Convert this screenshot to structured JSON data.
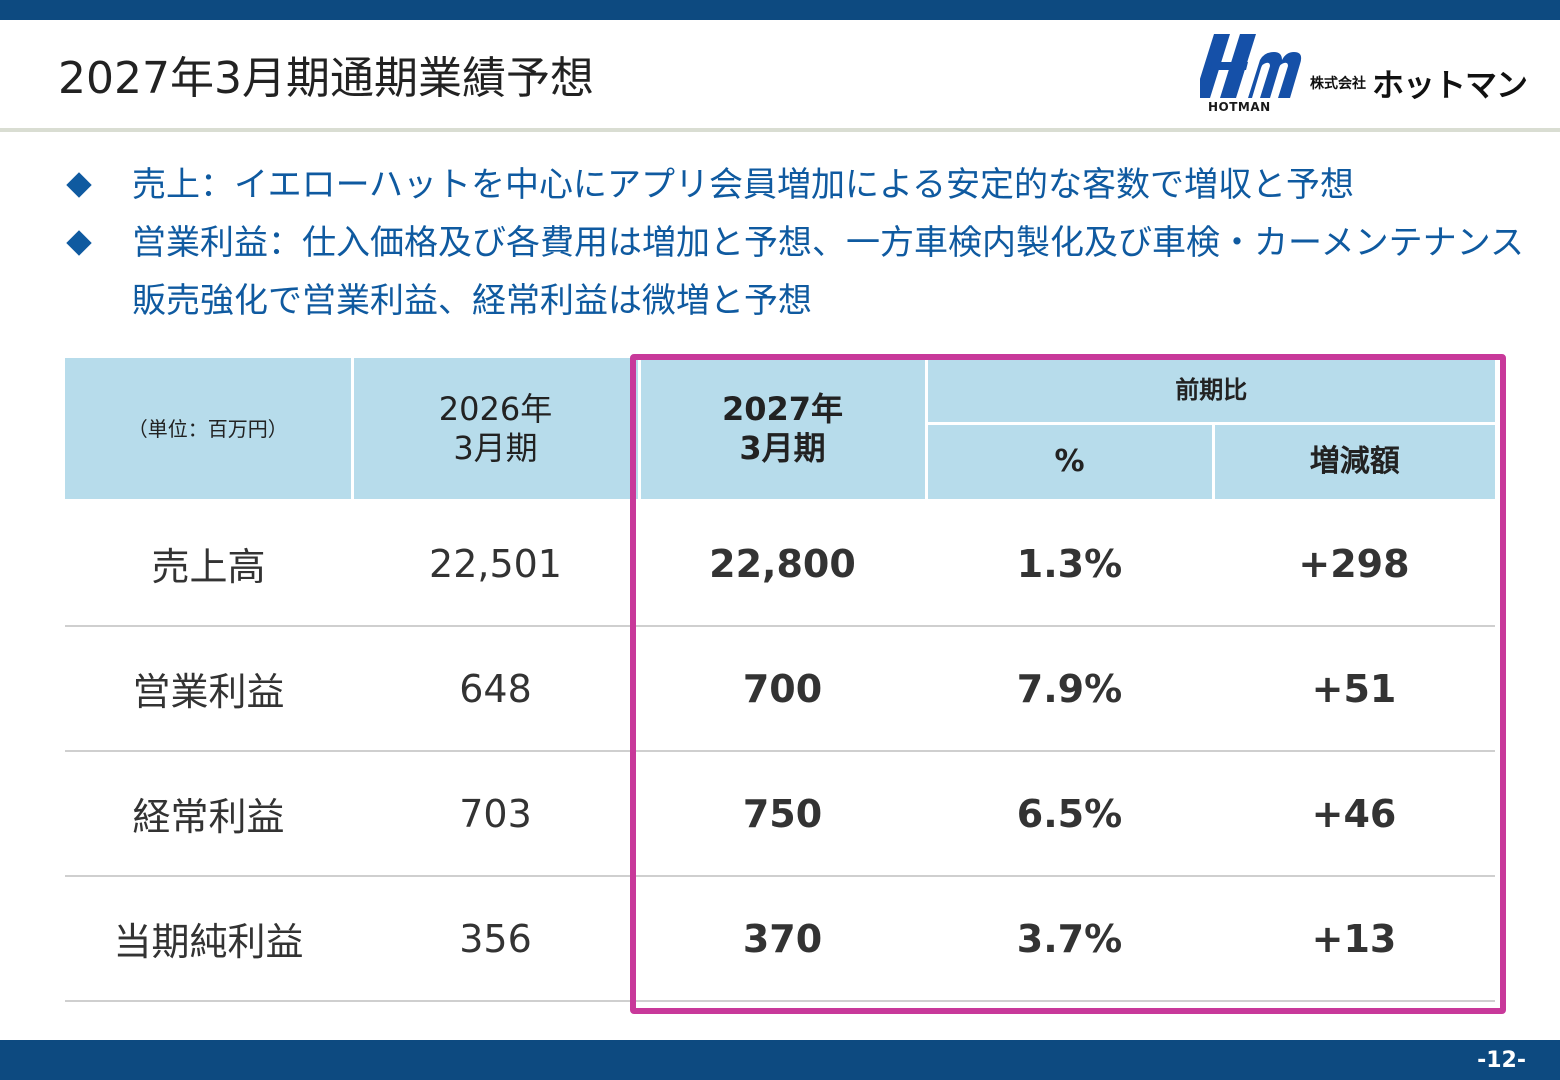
{
  "header": {
    "title": "2027年3月期通期業績予想",
    "logo": {
      "mark_text": "Hm",
      "sub_text": "HOTMAN",
      "company_prefix": "株式会社",
      "company_name": "ホットマン",
      "brand_color": "#1550a8"
    }
  },
  "bullets": [
    "売上：イエローハットを中心にアプリ会員増加による安定的な客数で増収と予想",
    "営業利益：仕入価格及び各費用は増加と予想、一方車検内製化及び車検・カーメンテナンス販売強化で営業利益、経常利益は微増と予想"
  ],
  "table": {
    "unit_label": "（単位：百万円）",
    "prev_period": [
      "2026年",
      "3月期"
    ],
    "current_period": [
      "2027年",
      "3月期"
    ],
    "comparison_header": "前期比",
    "percent_header": "%",
    "change_header": "増減額",
    "rows": [
      {
        "label": "売上高",
        "prev": "22,501",
        "current": "22,800",
        "percent": "1.3%",
        "change": "+298"
      },
      {
        "label": "営業利益",
        "prev": "648",
        "current": "700",
        "percent": "7.9%",
        "change": "+51"
      },
      {
        "label": "経常利益",
        "prev": "703",
        "current": "750",
        "percent": "6.5%",
        "change": "+46"
      },
      {
        "label": "当期純利益",
        "prev": "356",
        "current": "370",
        "percent": "3.7%",
        "change": "+13"
      }
    ]
  },
  "footer": {
    "page_number": "-12-"
  },
  "colors": {
    "top_bar": "#0d4a80",
    "bullet_text": "#0f5aa0",
    "table_header_bg": "#b7dceb",
    "highlight_border": "#c8399a"
  }
}
